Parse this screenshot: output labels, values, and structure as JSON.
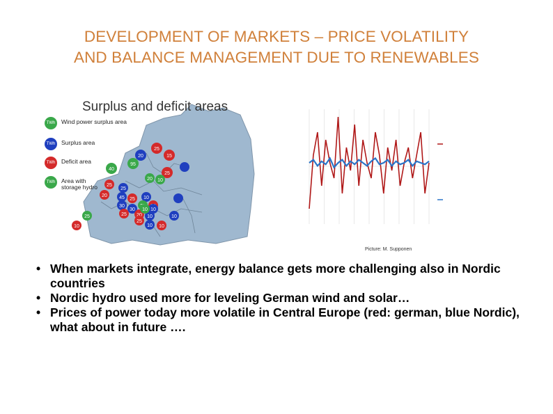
{
  "slide": {
    "title_line1": "DEVELOPMENT OF MARKETS – PRICE  VOLATILITY",
    "title_line2": "AND BALANCE MANAGEMENT DUE TO RENEWABLES"
  },
  "map": {
    "heading": "Surplus and deficit areas",
    "legend": [
      {
        "label": "Wind power surplus area",
        "badge": "TWh",
        "color": "#3aa84a"
      },
      {
        "label": "Surplus area",
        "badge": "TWh",
        "color": "#1f3fbf"
      },
      {
        "label": "Deficit area",
        "badge": "TWh",
        "color": "#d42a2a"
      },
      {
        "label": "Area with storage hydro",
        "badge": "TWh",
        "color": "#3aa84a"
      }
    ],
    "markers": [
      "25",
      "15",
      "20",
      "95",
      "40",
      "25",
      "20",
      "10",
      "25",
      "25",
      "20",
      "10",
      "30",
      "25",
      "45",
      "25",
      "20",
      "30",
      "25",
      "20",
      "10",
      "10",
      "25",
      "10",
      "25",
      "10",
      "10",
      "10",
      "10"
    ]
  },
  "chart_data": {
    "type": "line",
    "series": [
      {
        "color": "#b01818",
        "values": [
          10,
          45,
          60,
          25,
          55,
          40,
          30,
          70,
          20,
          50,
          35,
          65,
          25,
          55,
          40,
          30,
          60,
          45,
          20,
          50,
          35,
          55,
          25,
          40,
          50,
          30,
          45,
          60,
          20,
          40
        ]
      },
      {
        "color": "#2a74c8",
        "values": [
          40,
          42,
          38,
          41,
          39,
          43,
          37,
          40,
          42,
          38,
          41,
          39,
          42,
          40,
          38,
          41,
          43,
          39,
          40,
          42,
          38,
          41,
          39,
          40,
          42,
          38,
          41,
          40,
          39,
          41
        ]
      }
    ]
  },
  "picture_credit": "Picture: M. Supponen",
  "bullets": [
    "When markets integrate, energy balance gets more challenging also in Nordic countries",
    "Nordic hydro used more for leveling German wind and solar…",
    "Prices of power today more volatile in Central Europe (red: german, blue Nordic), what about in future …."
  ],
  "colors": {
    "title": "#d0803a",
    "bullet_text": "#000000"
  }
}
